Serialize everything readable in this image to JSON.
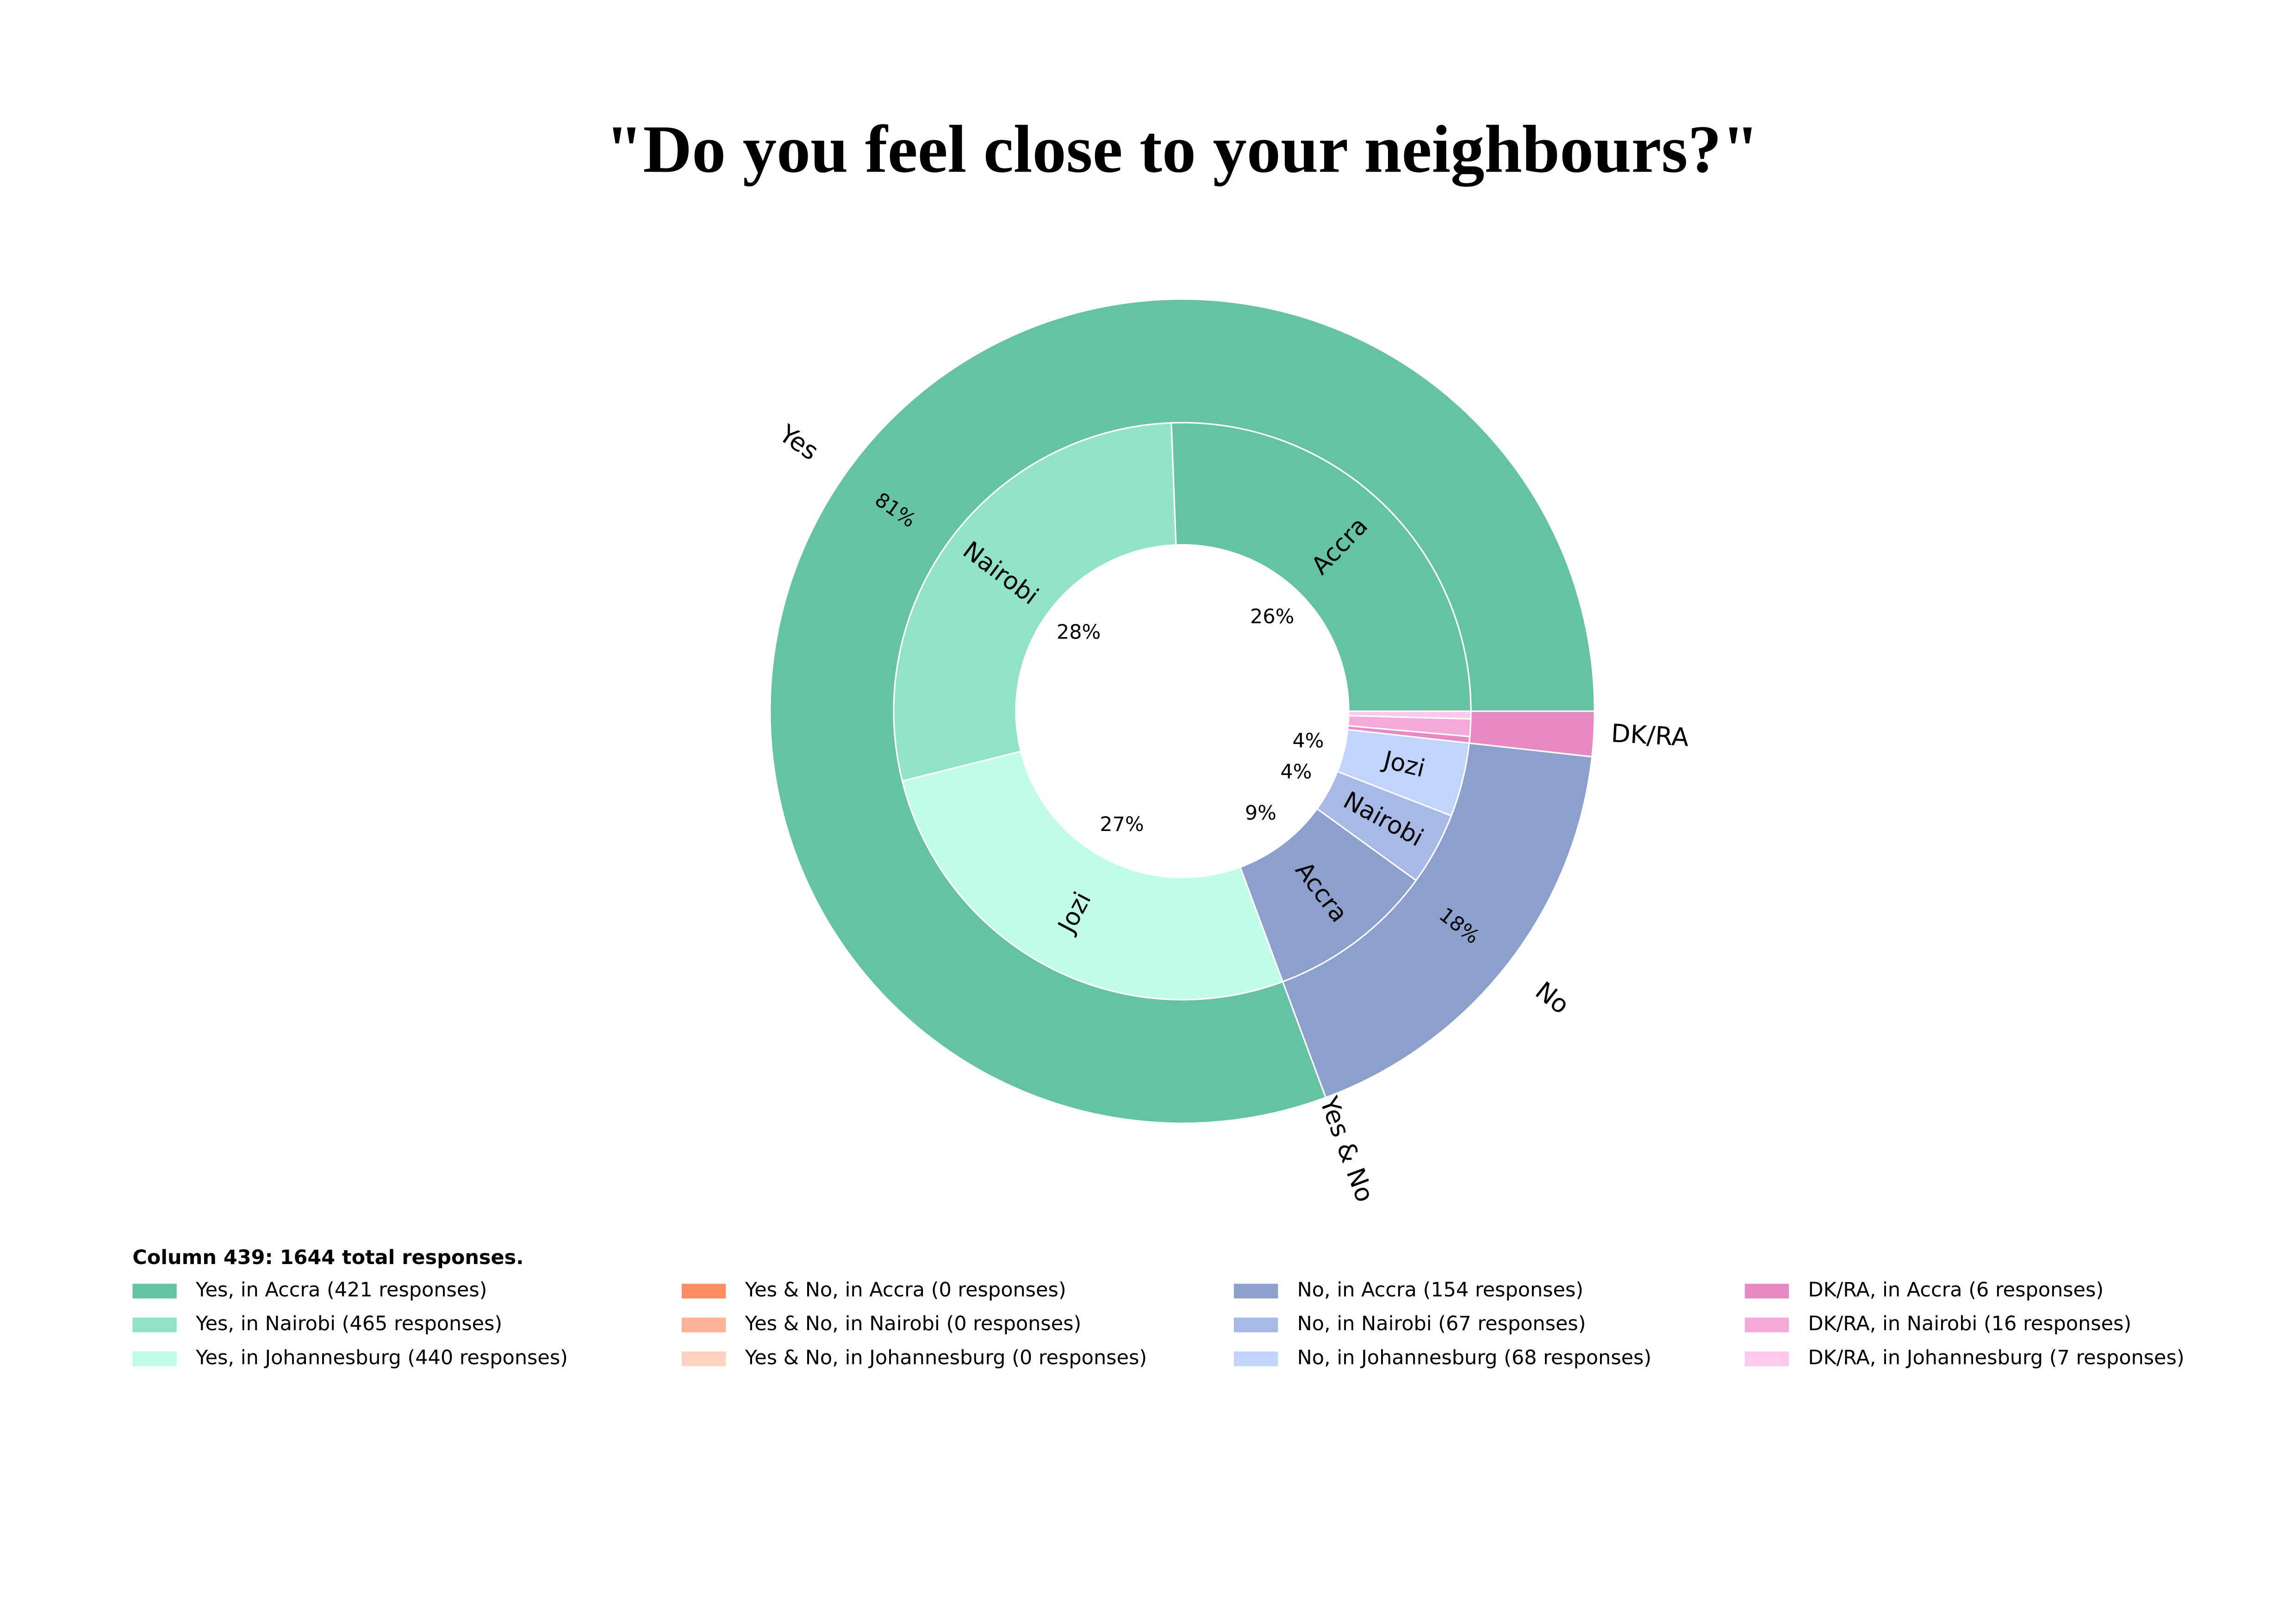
{
  "chart_data": {
    "type": "pie",
    "title": "\"Do you feel close to your neighbours?\"",
    "legend_title": "Column 439: 1644 total responses.",
    "outer": {
      "categories": [
        "Yes",
        "Yes & No",
        "No",
        "DK/RA"
      ],
      "values": [
        1326,
        0,
        289,
        29
      ],
      "value_labels": [
        "81%",
        null,
        "18%",
        null
      ],
      "colors": [
        "#66c2a5",
        "#fc8d62",
        "#8da0cb",
        "#e78ac3"
      ]
    },
    "inner": {
      "categories": [
        "Accra",
        "Nairobi",
        "Jozi",
        null,
        null,
        null,
        "Accra",
        "Nairobi",
        "Jozi",
        null,
        null,
        null
      ],
      "values": [
        421,
        465,
        440,
        0,
        0,
        0,
        154,
        67,
        68,
        6,
        16,
        7
      ],
      "value_labels": [
        "26%",
        "28%",
        "27%",
        null,
        null,
        null,
        "9%",
        "4%",
        "4%",
        null,
        null,
        null
      ],
      "colors": [
        "#66c2a5",
        "#91e2c9",
        "#c0fce7",
        "#fc8d62",
        "#fdb196",
        "#fed2c0",
        "#8da0cb",
        "#a9b9e5",
        "#c2d4fc",
        "#e78ac3",
        "#f5a9d8",
        "#ffc8ec"
      ],
      "legend": [
        "Yes, in Accra (421 responses)",
        "Yes, in Nairobi (465 responses)",
        "Yes, in Johannesburg (440 responses)",
        "Yes & No, in Accra (0 responses)",
        "Yes & No, in Nairobi (0 responses)",
        "Yes & No, in Johannesburg (0 responses)",
        "No, in Accra (154 responses)",
        "No, in Nairobi (67 responses)",
        "No, in Johannesburg (68 responses)",
        "DK/RA, in Accra (6 responses)",
        "DK/RA, in Nairobi (16 responses)",
        "DK/RA, in Johannesburg (7 responses)"
      ]
    }
  }
}
